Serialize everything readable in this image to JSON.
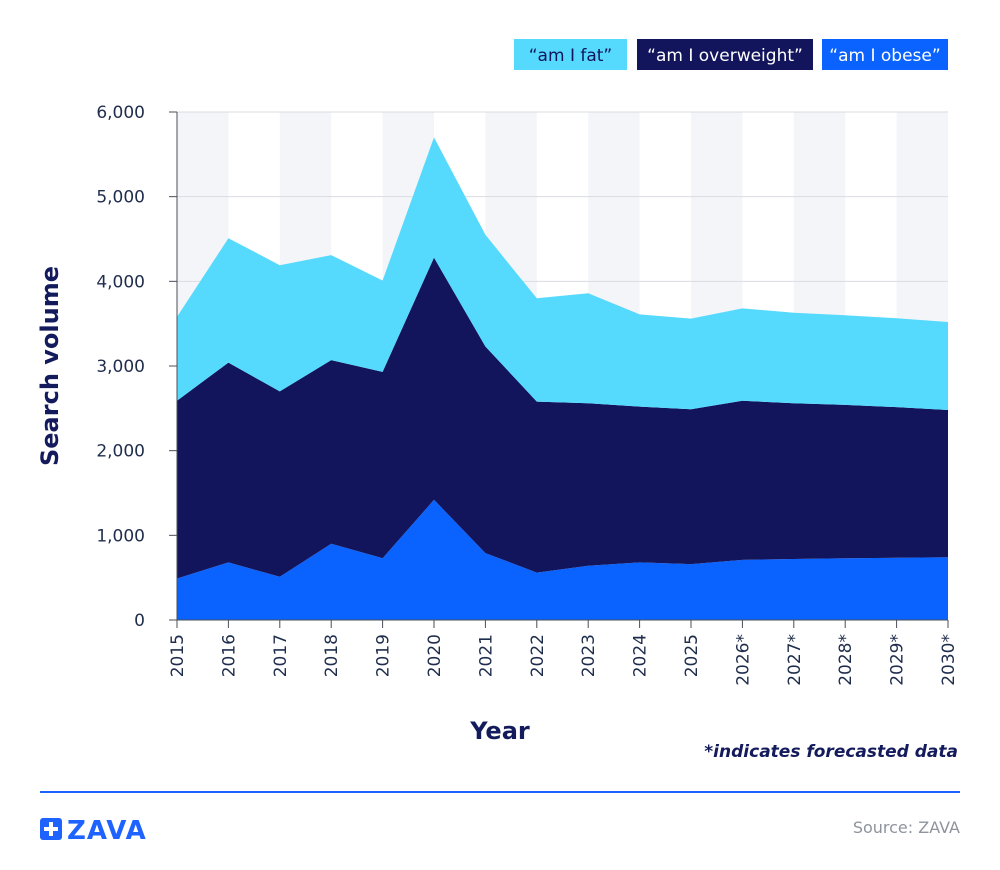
{
  "chart_data": {
    "type": "area",
    "stacked": true,
    "categories": [
      "2015",
      "2016",
      "2017",
      "2018",
      "2019",
      "2020",
      "2021",
      "2022",
      "2023",
      "2024",
      "2025",
      "2026*",
      "2027*",
      "2028*",
      "2029*",
      "2030*"
    ],
    "series": [
      {
        "name": "“am I obese”",
        "color": "#0a63ff",
        "values": [
          490,
          680,
          510,
          900,
          730,
          1420,
          790,
          560,
          640,
          680,
          660,
          710,
          720,
          730,
          735,
          740
        ]
      },
      {
        "name": "“am I overweight”",
        "color": "#12155c",
        "values": [
          2100,
          2360,
          2190,
          2170,
          2200,
          2860,
          2440,
          2020,
          1920,
          1840,
          1830,
          1880,
          1840,
          1810,
          1780,
          1740
        ]
      },
      {
        "name": "“am I fat”",
        "color": "#55d9fd",
        "values": [
          990,
          1470,
          1490,
          1240,
          1080,
          1420,
          1320,
          1220,
          1300,
          1090,
          1070,
          1090,
          1070,
          1060,
          1050,
          1040
        ]
      }
    ],
    "legend_order": [
      2,
      1,
      0
    ],
    "xlabel": "Year",
    "ylabel": "Search volume",
    "ylim": [
      0,
      6000
    ],
    "yticks": [
      0,
      1000,
      2000,
      3000,
      4000,
      5000,
      6000
    ],
    "ytick_labels": [
      "0",
      "1,000",
      "2,000",
      "3,000",
      "4,000",
      "5,000",
      "6,000"
    ],
    "grid": true,
    "legend_position": "top-right",
    "footnote": "*indicates forecasted data",
    "band_color": "#f4f5f8",
    "gridline_color": "#d9dce2"
  },
  "branding": {
    "logo_text": "ZAVA",
    "source": "Source: ZAVA",
    "accent_color": "#1e63ff"
  }
}
